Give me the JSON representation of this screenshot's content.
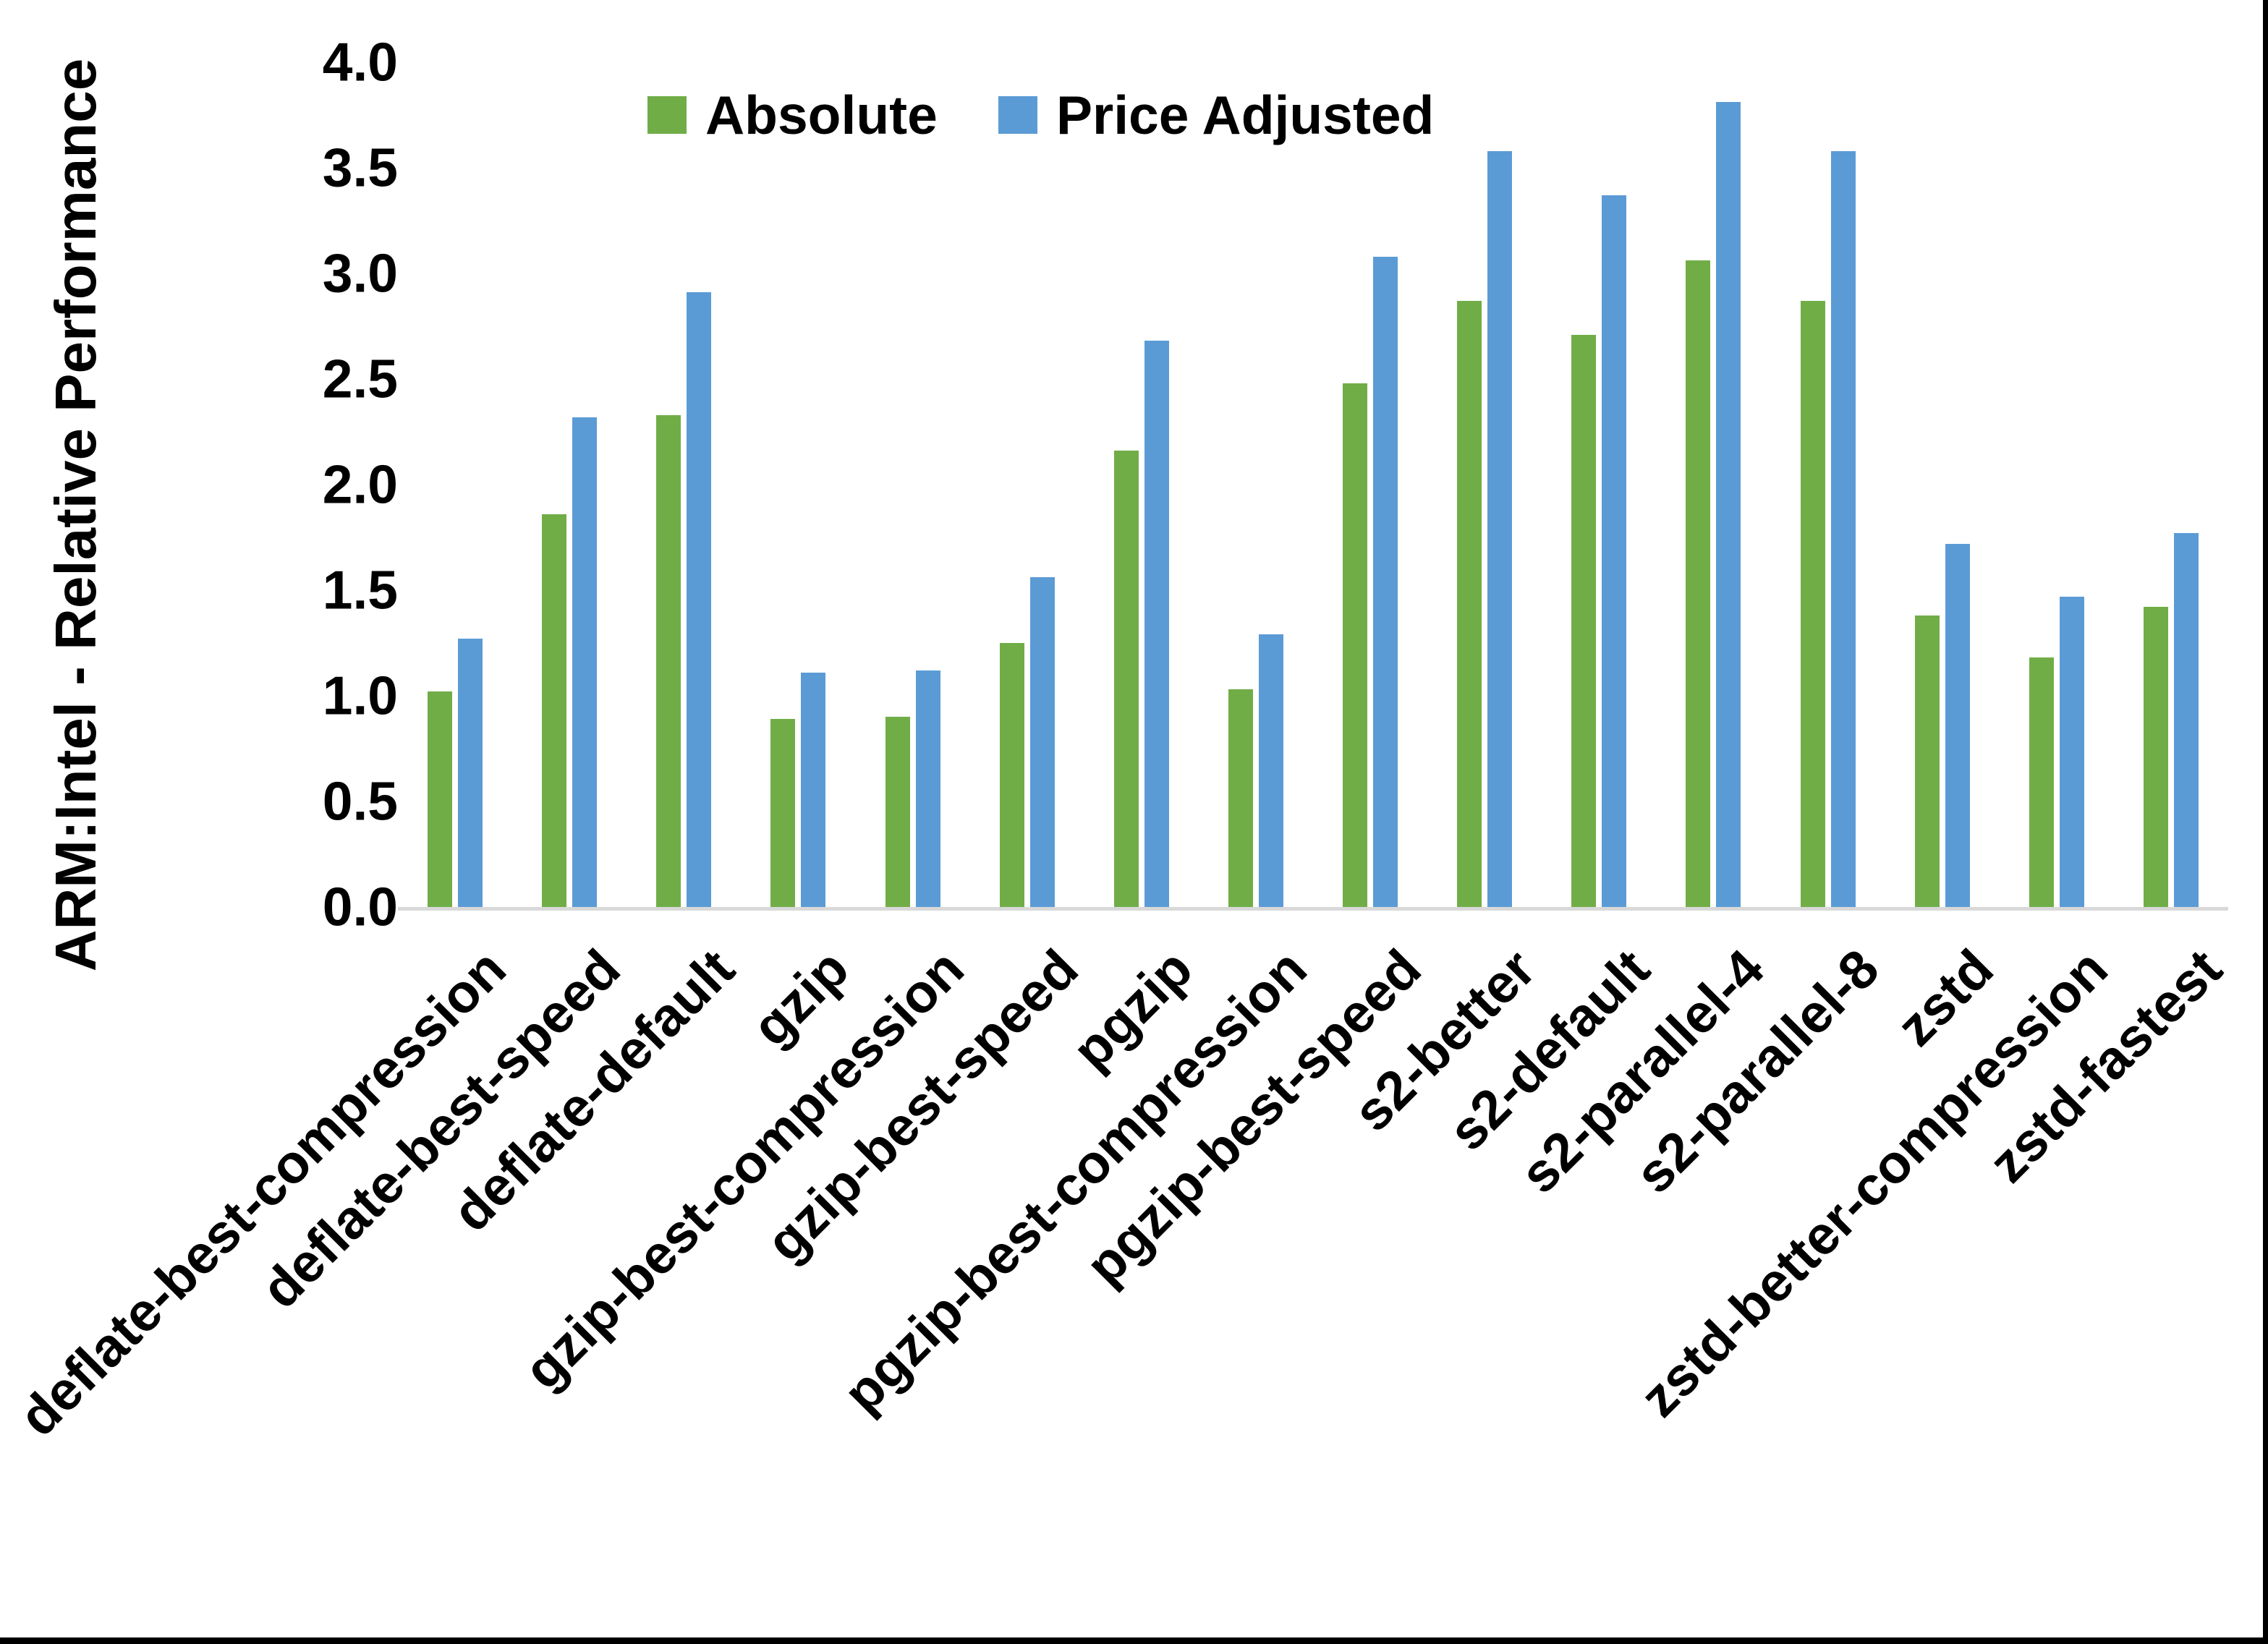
{
  "chart_data": {
    "type": "bar",
    "title": "",
    "ylabel": "ARM:Intel - Relative Performance",
    "xlabel": "",
    "ylim": [
      0.0,
      4.0
    ],
    "y_tick_step": 0.5,
    "y_tick_labels": [
      "0.0",
      "0.5",
      "1.0",
      "1.5",
      "2.0",
      "2.5",
      "3.0",
      "3.5",
      "4.0"
    ],
    "grid": false,
    "legend_position": "top",
    "categories": [
      "deflate-best-compression",
      "deflate-best-speed",
      "deflate-default",
      "gzip",
      "gzip-best-compression",
      "gzip-best-speed",
      "pgzip",
      "pgzip-best-compression",
      "pgzip-best-speed",
      "s2-better",
      "s2-default",
      "s2-parallel-4",
      "s2-parallel-8",
      "zstd",
      "zstd-better-compression",
      "zstd-fastest"
    ],
    "series": [
      {
        "name": "Absolute",
        "color": "#70AD47",
        "values": [
          1.02,
          1.86,
          2.33,
          0.89,
          0.9,
          1.25,
          2.16,
          1.03,
          2.48,
          2.87,
          2.71,
          3.06,
          2.87,
          1.38,
          1.18,
          1.42
        ]
      },
      {
        "name": "Price Adjusted",
        "color": "#5B9BD5",
        "values": [
          1.27,
          2.32,
          2.91,
          1.11,
          1.12,
          1.56,
          2.68,
          1.29,
          3.08,
          3.58,
          3.37,
          3.81,
          3.58,
          1.72,
          1.47,
          1.77
        ]
      }
    ],
    "baseline_color": "#D9D9D9",
    "text_color": "#000000"
  }
}
